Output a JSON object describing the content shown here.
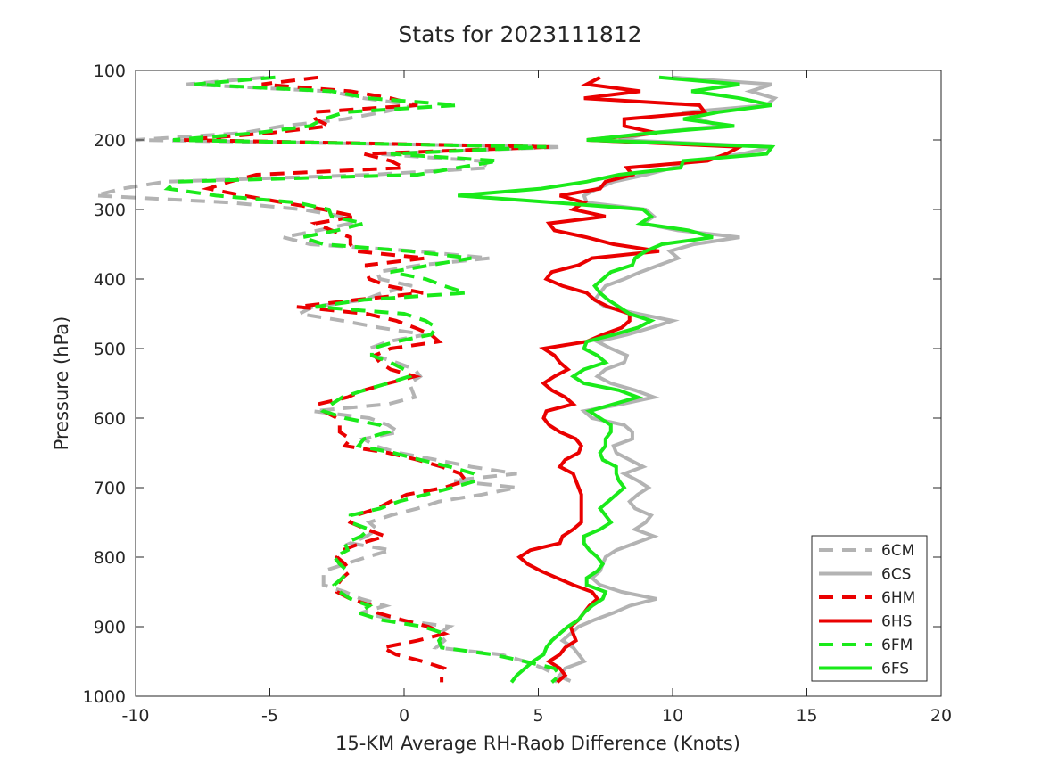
{
  "chart_data": {
    "type": "line",
    "title": "Stats for 2023111812",
    "xlabel": "15-KM Average RH-Raob Difference (Knots)",
    "ylabel": "Pressure (hPa)",
    "xlim": [
      -10,
      20
    ],
    "ylim": [
      1000,
      100
    ],
    "y_reversed": true,
    "xticks": [
      "-10",
      "-5",
      "0",
      "5",
      "10",
      "15",
      "20"
    ],
    "yticks": [
      "100",
      "200",
      "300",
      "400",
      "500",
      "600",
      "700",
      "800",
      "900",
      "1000"
    ],
    "grid": false,
    "legend_position": "bottom-right",
    "pressure": [
      110,
      120,
      130,
      140,
      150,
      160,
      170,
      180,
      190,
      200,
      210,
      220,
      230,
      240,
      250,
      260,
      270,
      280,
      290,
      300,
      310,
      320,
      330,
      340,
      350,
      360,
      370,
      380,
      390,
      400,
      410,
      420,
      430,
      440,
      450,
      460,
      470,
      480,
      490,
      500,
      510,
      520,
      530,
      540,
      550,
      560,
      570,
      580,
      590,
      600,
      610,
      620,
      630,
      640,
      650,
      660,
      670,
      680,
      690,
      700,
      710,
      720,
      730,
      740,
      750,
      760,
      770,
      780,
      790,
      800,
      810,
      820,
      830,
      840,
      850,
      860,
      870,
      880,
      890,
      900,
      910,
      920,
      930,
      940,
      950,
      960,
      970,
      980
    ],
    "series": [
      {
        "name": "6CM",
        "style": "dashed",
        "color": "#b3b3b3",
        "values": [
          -5.2,
          -8.1,
          -2.8,
          -1.5,
          0.4,
          -0.8,
          -2.2,
          -4.5,
          -6.0,
          -10.0,
          5.9,
          -1.0,
          2.8,
          3.2,
          -1.2,
          -8.9,
          -10.5,
          -11.5,
          -6.5,
          -3.8,
          -2.3,
          -2.0,
          -3.2,
          -4.5,
          -3.5,
          0.5,
          3.2,
          0.6,
          -1.0,
          -0.9,
          0.3,
          -0.8,
          -1.5,
          -3.4,
          -3.9,
          -2.3,
          -0.9,
          0.8,
          -0.6,
          -1.3,
          -1.1,
          -0.3,
          0.4,
          0.6,
          0.2,
          0.3,
          0.4,
          -0.6,
          -3.4,
          -1.3,
          -0.6,
          -0.2,
          -1.5,
          -1.1,
          -0.2,
          1.2,
          2.5,
          4.2,
          1.8,
          4.2,
          2.9,
          1.3,
          0.5,
          -0.5,
          -1.3,
          -1.0,
          -1.4,
          -2.0,
          -0.5,
          -1.4,
          -2.2,
          -3.0,
          -3.0,
          -3.0,
          -2.2,
          -1.6,
          -0.7,
          -1.6,
          -0.3,
          1.7,
          1.3,
          1.5,
          1.2,
          3.6,
          4.5,
          5.2,
          5.7,
          6.3
        ]
      },
      {
        "name": "6CS",
        "style": "solid",
        "color": "#b3b3b3",
        "values": [
          10.0,
          13.7,
          12.9,
          13.8,
          13.5,
          10.5,
          11.0,
          11.8,
          9.2,
          8.0,
          13.7,
          12.6,
          10.7,
          10.0,
          9.0,
          7.8,
          7.2,
          6.7,
          6.8,
          9.0,
          9.3,
          8.9,
          10.2,
          12.5,
          10.8,
          9.9,
          10.2,
          9.5,
          8.8,
          8.2,
          7.5,
          7.3,
          7.1,
          7.5,
          8.7,
          10.0,
          9.2,
          8.3,
          7.2,
          7.7,
          8.3,
          8.2,
          7.5,
          7.2,
          7.7,
          8.6,
          9.3,
          8.1,
          6.7,
          7.0,
          8.2,
          8.5,
          8.5,
          7.8,
          7.9,
          8.4,
          8.9,
          8.2,
          8.7,
          9.1,
          8.7,
          8.4,
          8.6,
          9.2,
          9.0,
          8.6,
          9.3,
          8.6,
          7.9,
          7.5,
          7.4,
          7.3,
          7.0,
          7.3,
          8.1,
          9.4,
          8.4,
          7.8,
          7.1,
          6.5,
          6.2,
          5.9,
          6.3,
          6.5,
          6.7,
          6.0,
          5.8,
          5.6
        ]
      },
      {
        "name": "6HM",
        "style": "dashed",
        "color": "#ea0000",
        "values": [
          -3.2,
          -5.3,
          -2.0,
          -0.5,
          0.5,
          -3.4,
          -3.3,
          -2.8,
          -5.0,
          -8.2,
          5.5,
          -1.5,
          -0.5,
          0.0,
          -5.5,
          -6.5,
          -7.3,
          -6.0,
          -4.5,
          -3.0,
          -1.8,
          -3.3,
          -2.7,
          -2.0,
          -2.0,
          -1.8,
          0.8,
          -1.4,
          -1.4,
          -1.3,
          -0.6,
          0.7,
          -1.8,
          -4.0,
          -1.4,
          -0.3,
          0.4,
          1.0,
          1.3,
          -0.5,
          -1.1,
          -0.9,
          -0.5,
          0.4,
          -0.6,
          -1.5,
          -2.1,
          -3.2,
          -3.0,
          -2.5,
          -2.4,
          -2.4,
          -2.0,
          -2.2,
          -0.6,
          0.5,
          1.4,
          2.1,
          2.3,
          1.5,
          0.1,
          -0.5,
          -1.0,
          -1.8,
          -2.0,
          -1.4,
          -0.7,
          -1.6,
          -2.3,
          -2.5,
          -2.2,
          -2.0,
          -2.3,
          -2.5,
          -2.5,
          -2.0,
          -1.2,
          -1.0,
          -0.1,
          0.9,
          1.5,
          0.5,
          -0.8,
          -0.3,
          0.7,
          1.5,
          1.4,
          1.4
        ]
      },
      {
        "name": "6HS",
        "style": "solid",
        "color": "#ea0000",
        "values": [
          7.3,
          6.8,
          8.8,
          6.7,
          11.0,
          11.2,
          8.2,
          8.2,
          9.4,
          6.8,
          12.5,
          12.0,
          11.3,
          8.3,
          8.5,
          7.5,
          7.3,
          5.8,
          6.7,
          6.3,
          7.5,
          5.4,
          5.6,
          6.8,
          7.8,
          9.5,
          7.0,
          6.5,
          5.5,
          5.3,
          5.9,
          6.8,
          7.1,
          7.6,
          8.4,
          8.4,
          8.1,
          7.4,
          6.8,
          5.2,
          5.6,
          5.8,
          6.1,
          5.6,
          5.2,
          5.5,
          6.0,
          6.3,
          5.3,
          5.2,
          5.4,
          5.8,
          6.4,
          6.6,
          6.5,
          6.0,
          5.8,
          6.3,
          6.4,
          6.5,
          6.6,
          6.6,
          6.6,
          6.6,
          6.6,
          6.3,
          5.9,
          5.8,
          4.7,
          4.3,
          4.6,
          5.1,
          5.7,
          6.3,
          7.0,
          7.2,
          6.9,
          6.7,
          6.5,
          6.2,
          6.3,
          6.4,
          6.0,
          5.8,
          5.4,
          5.8,
          6.0,
          5.7
        ]
      },
      {
        "name": "6FM",
        "style": "dashed",
        "color": "#1aea1a",
        "values": [
          -4.8,
          -7.8,
          -2.7,
          -1.3,
          2.0,
          -2.2,
          -3.0,
          -3.5,
          -5.5,
          -8.6,
          5.3,
          -0.5,
          3.5,
          2.0,
          0.5,
          -8.5,
          -8.8,
          -7.0,
          -4.0,
          -2.8,
          -2.7,
          -1.5,
          -2.5,
          -3.8,
          -3.0,
          0.2,
          2.5,
          1.0,
          -0.5,
          0.8,
          1.5,
          2.3,
          -1.5,
          -3.3,
          0.0,
          0.8,
          1.2,
          1.0,
          -0.3,
          -1.2,
          -1.2,
          -0.5,
          0.0,
          0.2,
          -0.6,
          -1.5,
          -2.3,
          -2.7,
          -3.0,
          -2.2,
          -0.9,
          -0.6,
          -1.5,
          -1.7,
          -0.4,
          0.6,
          1.7,
          2.6,
          2.7,
          1.8,
          0.8,
          -0.2,
          -0.9,
          -2.0,
          -2.0,
          -1.3,
          -1.6,
          -2.2,
          -2.1,
          -2.6,
          -2.4,
          -2.1,
          -2.3,
          -2.6,
          -2.4,
          -2.0,
          -1.3,
          -1.7,
          -0.9,
          0.7,
          1.5,
          1.3,
          1.4,
          3.3,
          4.5,
          5.6,
          5.8,
          5.5
        ]
      },
      {
        "name": "6FS",
        "style": "solid",
        "color": "#1aea1a",
        "values": [
          9.5,
          12.5,
          10.7,
          12.5,
          13.7,
          11.7,
          10.4,
          12.3,
          9.2,
          6.8,
          13.7,
          13.5,
          10.4,
          10.3,
          8.0,
          6.8,
          5.1,
          2.0,
          5.6,
          8.9,
          9.2,
          8.8,
          10.6,
          11.5,
          9.6,
          9.0,
          8.6,
          8.5,
          7.7,
          7.4,
          7.1,
          7.3,
          7.6,
          8.0,
          8.4,
          9.2,
          8.7,
          7.8,
          6.8,
          6.7,
          7.2,
          7.5,
          6.7,
          6.3,
          6.7,
          8.0,
          8.7,
          7.8,
          6.9,
          7.3,
          7.7,
          7.7,
          7.5,
          7.5,
          7.3,
          7.4,
          7.9,
          7.9,
          8.0,
          8.2,
          7.9,
          7.6,
          7.3,
          7.5,
          7.7,
          7.3,
          6.7,
          6.7,
          6.9,
          7.2,
          7.4,
          7.2,
          6.8,
          6.8,
          7.5,
          7.4,
          7.0,
          6.7,
          6.5,
          6.1,
          5.8,
          5.5,
          5.3,
          5.2,
          4.8,
          4.5,
          4.2,
          4.0
        ]
      }
    ]
  }
}
